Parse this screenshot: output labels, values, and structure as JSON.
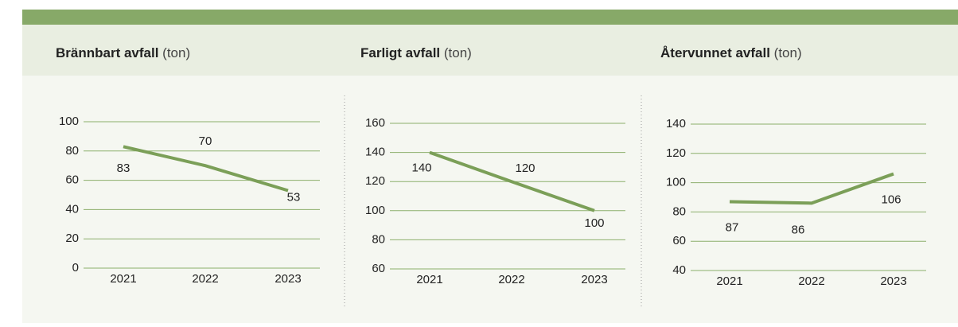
{
  "chart_data": [
    {
      "type": "line",
      "title": "Brännbart avfall",
      "unit": "(ton)",
      "categories": [
        "2021",
        "2022",
        "2023"
      ],
      "values": [
        83,
        70,
        53
      ],
      "color": "#7b9f58",
      "ylim": [
        0,
        100
      ],
      "yticks": [
        0,
        20,
        40,
        60,
        80,
        100
      ],
      "grid": true
    },
    {
      "type": "line",
      "title": "Farligt avfall",
      "unit": "(ton)",
      "categories": [
        "2021",
        "2022",
        "2023"
      ],
      "values": [
        140,
        120,
        100
      ],
      "color": "#7b9f58",
      "ylim": [
        60,
        160
      ],
      "yticks": [
        60,
        80,
        100,
        120,
        140,
        160
      ],
      "grid": true
    },
    {
      "type": "line",
      "title": "Återvunnet avfall",
      "unit": "(ton)",
      "categories": [
        "2021",
        "2022",
        "2023"
      ],
      "values": [
        87,
        86,
        106
      ],
      "color": "#7b9f58",
      "ylim": [
        40,
        140
      ],
      "yticks": [
        40,
        60,
        80,
        100,
        120,
        140
      ],
      "grid": true
    }
  ]
}
